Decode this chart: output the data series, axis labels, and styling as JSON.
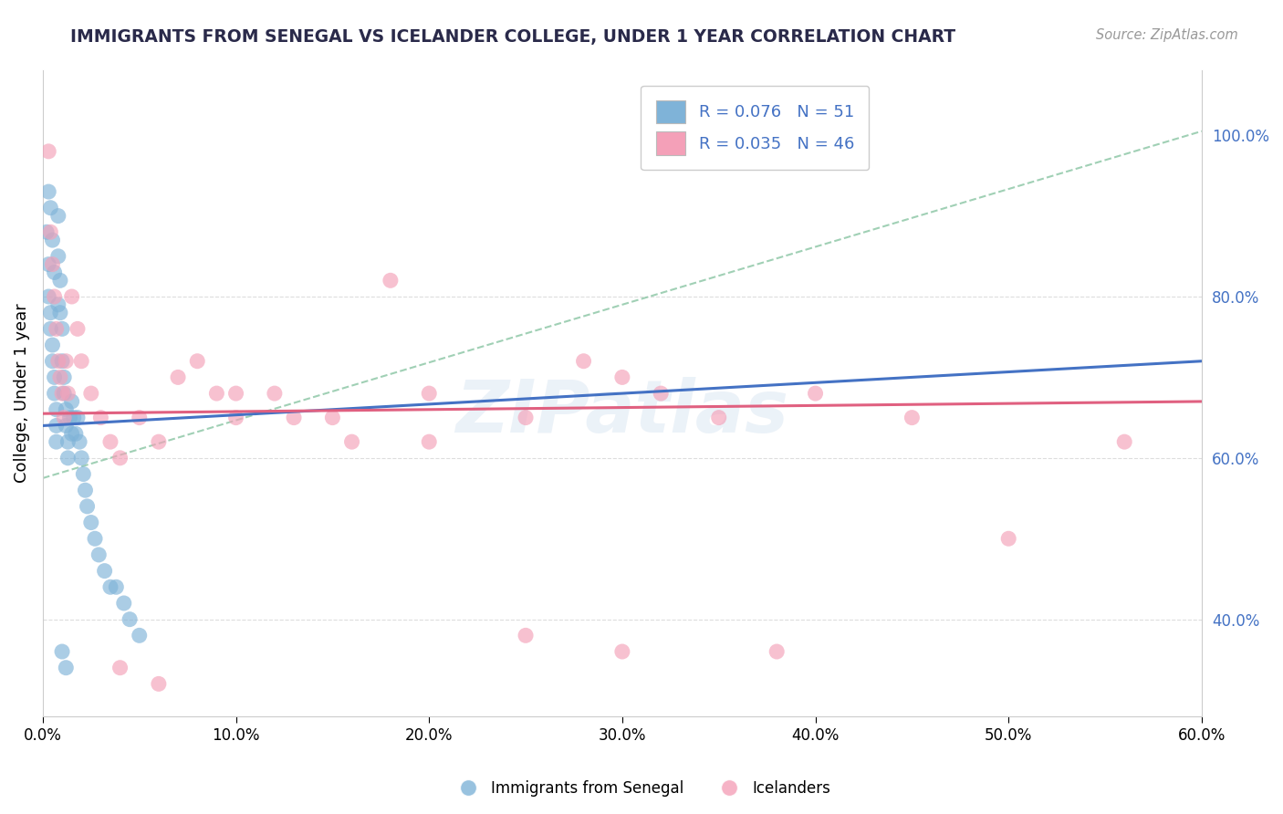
{
  "title": "IMMIGRANTS FROM SENEGAL VS ICELANDER COLLEGE, UNDER 1 YEAR CORRELATION CHART",
  "source_text": "Source: ZipAtlas.com",
  "ylabel": "College, Under 1 year",
  "xlim": [
    0.0,
    0.6
  ],
  "ylim": [
    0.28,
    1.08
  ],
  "legend_entry_1": "R = 0.076   N = 51",
  "legend_entry_2": "R = 0.035   N = 46",
  "watermark": "ZIPatlas",
  "blue_scatter_x": [
    0.002,
    0.003,
    0.003,
    0.004,
    0.004,
    0.005,
    0.005,
    0.006,
    0.006,
    0.007,
    0.007,
    0.007,
    0.008,
    0.008,
    0.009,
    0.009,
    0.01,
    0.01,
    0.011,
    0.011,
    0.012,
    0.012,
    0.013,
    0.013,
    0.014,
    0.015,
    0.015,
    0.016,
    0.017,
    0.018,
    0.019,
    0.02,
    0.021,
    0.022,
    0.023,
    0.025,
    0.027,
    0.029,
    0.032,
    0.035,
    0.038,
    0.042,
    0.045,
    0.05,
    0.003,
    0.004,
    0.005,
    0.006,
    0.008,
    0.01,
    0.012
  ],
  "blue_scatter_y": [
    0.88,
    0.84,
    0.8,
    0.78,
    0.76,
    0.74,
    0.72,
    0.7,
    0.68,
    0.66,
    0.64,
    0.62,
    0.9,
    0.85,
    0.82,
    0.78,
    0.76,
    0.72,
    0.7,
    0.68,
    0.66,
    0.64,
    0.62,
    0.6,
    0.65,
    0.63,
    0.67,
    0.65,
    0.63,
    0.65,
    0.62,
    0.6,
    0.58,
    0.56,
    0.54,
    0.52,
    0.5,
    0.48,
    0.46,
    0.44,
    0.44,
    0.42,
    0.4,
    0.38,
    0.93,
    0.91,
    0.87,
    0.83,
    0.79,
    0.36,
    0.34
  ],
  "pink_scatter_x": [
    0.003,
    0.004,
    0.005,
    0.006,
    0.007,
    0.008,
    0.009,
    0.01,
    0.011,
    0.012,
    0.013,
    0.015,
    0.018,
    0.02,
    0.025,
    0.03,
    0.035,
    0.04,
    0.05,
    0.06,
    0.07,
    0.08,
    0.09,
    0.1,
    0.12,
    0.15,
    0.18,
    0.2,
    0.25,
    0.28,
    0.3,
    0.32,
    0.35,
    0.38,
    0.4,
    0.45,
    0.5,
    0.56,
    0.1,
    0.13,
    0.16,
    0.2,
    0.25,
    0.3,
    0.04,
    0.06
  ],
  "pink_scatter_y": [
    0.98,
    0.88,
    0.84,
    0.8,
    0.76,
    0.72,
    0.7,
    0.68,
    0.65,
    0.72,
    0.68,
    0.8,
    0.76,
    0.72,
    0.68,
    0.65,
    0.62,
    0.6,
    0.65,
    0.62,
    0.7,
    0.72,
    0.68,
    0.65,
    0.68,
    0.65,
    0.82,
    0.68,
    0.65,
    0.72,
    0.7,
    0.68,
    0.65,
    0.36,
    0.68,
    0.65,
    0.5,
    0.62,
    0.68,
    0.65,
    0.62,
    0.62,
    0.38,
    0.36,
    0.34,
    0.32
  ],
  "blue_line_x": [
    0.0,
    0.6
  ],
  "blue_line_y": [
    0.64,
    0.72
  ],
  "pink_line_x": [
    0.0,
    0.6
  ],
  "pink_line_y": [
    0.655,
    0.67
  ],
  "dashed_line_x": [
    0.0,
    0.6
  ],
  "dashed_line_y": [
    0.575,
    1.005
  ],
  "blue_scatter_color": "#7fb3d8",
  "pink_scatter_color": "#f4a0b8",
  "blue_line_color": "#4472c4",
  "pink_line_color": "#e06080",
  "dashed_line_color": "#90c8a8",
  "grid_color": "#dddddd",
  "title_color": "#2a2a4a",
  "source_color": "#999999",
  "right_axis_color": "#4472c4"
}
